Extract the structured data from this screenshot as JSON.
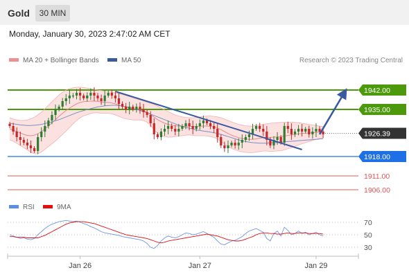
{
  "header": {
    "asset": "Gold",
    "timeframe": "30 MIN",
    "datetime": "Monday, January 30, 2023 2:47:02 AM CET"
  },
  "legend": {
    "bollinger": "MA 20 + Bollinger Bands",
    "ma50": "MA 50",
    "credit": "Research © 2023 Trading Central"
  },
  "colors": {
    "green": "#4c9a0c",
    "blue": "#1f6fe5",
    "red": "#e05555",
    "trend": "#3a5aa0",
    "band": "#fbdcdc",
    "up": "#2e7d32",
    "down": "#c62828"
  },
  "chart_data": [
    {
      "type": "candlestick",
      "x_tick_labels": [
        "Jan 26",
        "Jan 27",
        "Jan 29"
      ],
      "ylim": [
        1902,
        1950
      ],
      "last_price": 1926.39,
      "levels": [
        {
          "value": 1942.0,
          "label": "1942.00",
          "color": "#4c9a0c"
        },
        {
          "value": 1935.0,
          "label": "1935.00",
          "color": "#4c9a0c"
        },
        {
          "value": 1918.0,
          "label": "1918.00",
          "color": "#1f6fe5"
        },
        {
          "value": 1911.0,
          "label": "1911.00",
          "color": "#e05555"
        },
        {
          "value": 1906.0,
          "label": "1906.00",
          "color": "#e05555"
        }
      ],
      "last_price_label": "1926.39",
      "closes": [
        1929,
        1927,
        1925,
        1924,
        1923,
        1922,
        1921,
        1920,
        1925,
        1927,
        1929,
        1931,
        1933,
        1935,
        1936,
        1938,
        1939,
        1940,
        1940,
        1941,
        1940,
        1939,
        1940,
        1941,
        1940,
        1939,
        1938,
        1940,
        1941,
        1940,
        1939,
        1937,
        1936,
        1935,
        1936,
        1935,
        1936,
        1935,
        1934,
        1933,
        1930,
        1926,
        1925,
        1927,
        1928,
        1929,
        1928,
        1927,
        1928,
        1929,
        1930,
        1929,
        1928,
        1929,
        1930,
        1931,
        1930,
        1929,
        1928,
        1925,
        1922,
        1921,
        1922,
        1923,
        1922,
        1923,
        1924,
        1925,
        1926,
        1928,
        1929,
        1928,
        1927,
        1924,
        1922,
        1924,
        1925,
        1923,
        1929,
        1928,
        1926,
        1927,
        1928,
        1927,
        1928,
        1926,
        1927,
        1928,
        1927,
        1926
      ],
      "ma20": [
        1928,
        1927.5,
        1927,
        1926.5,
        1926,
        1925.6,
        1925.5,
        1925.7,
        1926.2,
        1927,
        1928,
        1929,
        1930.2,
        1931.3,
        1932.5,
        1933.6,
        1934.6,
        1935.5,
        1936.3,
        1937,
        1937.5,
        1937.8,
        1937.9,
        1938,
        1938,
        1937.9,
        1937.7,
        1937.6,
        1937.5,
        1937.3,
        1937,
        1936.6,
        1936.2,
        1935.8,
        1935.5,
        1935.2,
        1935,
        1934.8,
        1934.5,
        1934,
        1933.2,
        1932.2,
        1931.3,
        1930.6,
        1930,
        1929.6,
        1929.3,
        1929.1,
        1929,
        1928.9,
        1928.9,
        1928.9,
        1928.8,
        1928.8,
        1928.9,
        1929,
        1929,
        1928.9,
        1928.7,
        1928.3,
        1927.7,
        1927,
        1926.3,
        1925.7,
        1925.2,
        1924.8,
        1924.5,
        1924.3,
        1924.2,
        1924.2,
        1924.4,
        1924.6,
        1924.8,
        1924.9,
        1924.9,
        1925,
        1925.1,
        1925.2,
        1925.4,
        1925.6,
        1925.8,
        1926,
        1926.2,
        1926.3,
        1926.4,
        1926.5,
        1926.6,
        1926.7,
        1926.8,
        1926.8
      ],
      "bb_upper": [
        1932,
        1931.5,
        1931.2,
        1931,
        1931,
        1931.2,
        1931.6,
        1932.2,
        1933,
        1934,
        1935.2,
        1936.5,
        1937.8,
        1939,
        1940.2,
        1941.2,
        1942,
        1942.5,
        1942.8,
        1943,
        1943,
        1942.9,
        1942.7,
        1942.5,
        1942.2,
        1942,
        1941.8,
        1941.6,
        1941.4,
        1941.2,
        1941,
        1940.7,
        1940.4,
        1940,
        1939.6,
        1939.2,
        1938.8,
        1938.4,
        1938,
        1937.6,
        1937.2,
        1936.8,
        1936.2,
        1935.5,
        1934.8,
        1934.2,
        1933.6,
        1933,
        1932.6,
        1932.3,
        1932.1,
        1932,
        1932,
        1932.1,
        1932.3,
        1932.5,
        1932.6,
        1932.6,
        1932.5,
        1932.3,
        1932,
        1931.5,
        1931,
        1930.5,
        1930,
        1929.6,
        1929.3,
        1929.1,
        1929,
        1929,
        1929.2,
        1929.4,
        1929.6,
        1929.8,
        1930,
        1930.1,
        1930.2,
        1930.3,
        1930.4,
        1930.4,
        1930.4,
        1930.3,
        1930.2,
        1930,
        1929.8,
        1929.6,
        1929.4,
        1929.2,
        1929,
        1928.8
      ],
      "bb_lower": [
        1924,
        1923.5,
        1922.8,
        1922,
        1921.2,
        1920.4,
        1919.6,
        1919,
        1919,
        1919.6,
        1920.6,
        1921.6,
        1922.6,
        1923.6,
        1924.8,
        1926,
        1927.2,
        1928.5,
        1929.8,
        1931,
        1932,
        1932.7,
        1933.1,
        1933.5,
        1933.8,
        1933.8,
        1933.6,
        1933.6,
        1933.6,
        1933.4,
        1933,
        1932.5,
        1932,
        1931.6,
        1931.4,
        1931.2,
        1931.2,
        1931.2,
        1931,
        1930.4,
        1929.2,
        1927.6,
        1926.4,
        1925.7,
        1925.2,
        1925,
        1925,
        1925.2,
        1925.4,
        1925.5,
        1925.7,
        1925.8,
        1925.6,
        1925.5,
        1925.5,
        1925.5,
        1925.4,
        1925.2,
        1924.9,
        1924.3,
        1923.4,
        1922.5,
        1921.6,
        1920.9,
        1920.4,
        1920,
        1919.7,
        1919.5,
        1919.4,
        1919.4,
        1919.6,
        1919.8,
        1920,
        1920,
        1919.8,
        1919.9,
        1920,
        1920.1,
        1920.4,
        1920.8,
        1921.2,
        1921.7,
        1922.2,
        1922.6,
        1923,
        1923.4,
        1923.8,
        1924.2,
        1924.6,
        1924.8
      ],
      "ma50": [
        1930,
        1929.8,
        1929.6,
        1929.4,
        1929.3,
        1929.2,
        1929.2,
        1929.3,
        1929.4,
        1929.6,
        1929.9,
        1930.2,
        1930.5,
        1930.9,
        1931.3,
        1931.8,
        1932.3,
        1932.8,
        1933.3,
        1933.8,
        1934.2,
        1934.6,
        1935,
        1935.3,
        1935.6,
        1935.9,
        1936.1,
        1936.3,
        1936.4,
        1936.5,
        1936.5,
        1936.4,
        1936.2,
        1936,
        1935.7,
        1935.4,
        1935,
        1934.6,
        1934.2,
        1933.8,
        1933.3,
        1932.8,
        1932.3,
        1931.8,
        1931.3,
        1930.8,
        1930.3,
        1929.8,
        1929.3,
        1928.9,
        1928.5,
        1928.2,
        1927.9,
        1927.6,
        1927.4,
        1927.2,
        1927,
        1926.8,
        1926.6,
        1926.3,
        1926,
        1925.6,
        1925.2,
        1924.8,
        1924.4,
        1924,
        1923.7,
        1923.4,
        1923.2,
        1923,
        1922.9,
        1922.8,
        1922.8,
        1922.8,
        1922.9,
        1923,
        1923.1,
        1923.2,
        1923.3,
        1923.4,
        1923.5,
        1923.6,
        1923.7,
        1923.8,
        1923.9,
        1924,
        1924.1,
        1924.2,
        1924.3,
        1924.4
      ],
      "trendline": {
        "start_index": 30,
        "start_value": 1941.5,
        "end_index": 83,
        "end_value": 1920.5
      },
      "projection_arrow": {
        "start_index": 88,
        "start_value": 1926,
        "end_index": 95,
        "end_value": 1941
      }
    },
    {
      "type": "line",
      "legend": [
        "RSI",
        "9MA"
      ],
      "ylim": [
        20,
        80
      ],
      "y_ticks": [
        70,
        50,
        30
      ],
      "rsi": [
        50,
        48,
        46,
        44,
        45,
        43,
        42,
        44,
        50,
        55,
        60,
        64,
        67,
        69,
        71,
        72,
        73,
        72,
        71,
        72,
        70,
        68,
        66,
        63,
        61,
        58,
        55,
        53,
        52,
        51,
        50,
        49,
        47,
        46,
        45,
        44,
        43,
        42,
        40,
        36,
        30,
        28,
        33,
        40,
        45,
        48,
        46,
        45,
        47,
        50,
        53,
        52,
        50,
        51,
        53,
        55,
        52,
        49,
        46,
        40,
        35,
        34,
        37,
        40,
        41,
        44,
        47,
        52,
        56,
        58,
        60,
        57,
        54,
        44,
        40,
        52,
        56,
        48,
        62,
        57,
        50,
        52,
        56,
        52,
        54,
        50,
        52,
        54,
        50,
        48
      ],
      "ma9": [
        47,
        47,
        46,
        46,
        46,
        45,
        45,
        45,
        45,
        47,
        49,
        52,
        55,
        58,
        61,
        64,
        67,
        69,
        70,
        71,
        71,
        71,
        70,
        69,
        68,
        66,
        64,
        62,
        60,
        58,
        56,
        54,
        52,
        50,
        49,
        48,
        47,
        46,
        45,
        44,
        42,
        40,
        38,
        37,
        38,
        40,
        41,
        42,
        43,
        44,
        45,
        46,
        47,
        48,
        49,
        50,
        51,
        50,
        49,
        48,
        46,
        44,
        42,
        41,
        40,
        40,
        41,
        43,
        45,
        47,
        50,
        52,
        53,
        53,
        52,
        52,
        51,
        51,
        52,
        53,
        52,
        52,
        53,
        53,
        53,
        52,
        52,
        52,
        52,
        51
      ]
    }
  ]
}
